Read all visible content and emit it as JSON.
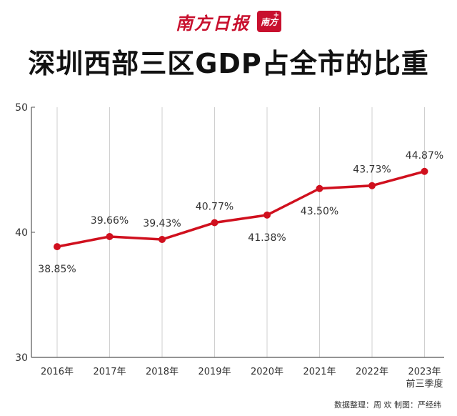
{
  "masthead": {
    "brand_name": "南方日报",
    "logo_text": "南方",
    "logo_plus": "+"
  },
  "title": "深圳西部三区GDP占全市的比重",
  "credit": "数据整理：周 欢  制图：严经纬",
  "colors": {
    "line": "#d0101e",
    "grid": "#cfcfcf",
    "brand": "#c8102e"
  },
  "chart_data": {
    "type": "line",
    "categories": [
      [
        "2016年"
      ],
      [
        "2017年"
      ],
      [
        "2018年"
      ],
      [
        "2019年"
      ],
      [
        "2020年"
      ],
      [
        "2021年"
      ],
      [
        "2022年"
      ],
      [
        "2023年",
        "前三季度"
      ]
    ],
    "values": [
      38.85,
      39.66,
      39.43,
      40.77,
      41.38,
      43.5,
      43.73,
      44.87
    ],
    "data_labels": [
      "38.85%",
      "39.66%",
      "39.43%",
      "40.77%",
      "41.38%",
      "43.50%",
      "43.73%",
      "44.87%"
    ],
    "label_positions": [
      "below",
      "above",
      "above",
      "above",
      "below",
      "below",
      "above",
      "above"
    ],
    "ylim": [
      30,
      50
    ],
    "yticks": [
      30,
      40,
      50
    ],
    "grid": "vertical",
    "title": "深圳西部三区GDP占全市的比重",
    "xlabel": "",
    "ylabel": ""
  }
}
